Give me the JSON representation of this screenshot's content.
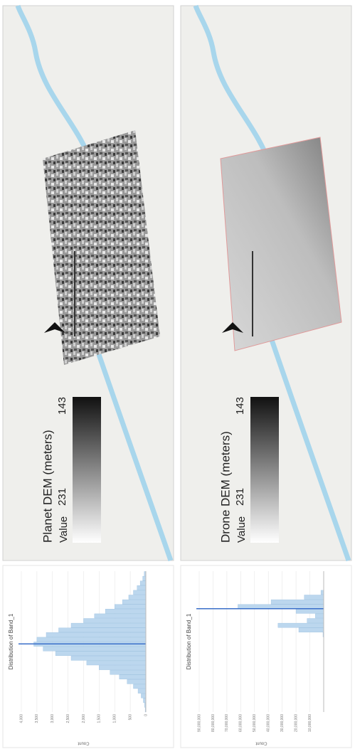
{
  "panels": [
    {
      "legend_title": "Planet DEM (meters)",
      "legend_label": "Value",
      "legend_max": "231",
      "legend_min": "143",
      "histogram": {
        "title": "Distribution of Band_1",
        "y_label": "Count",
        "ylim": [
          0,
          4000
        ],
        "yticks": [
          0,
          500,
          {
            "value": 1000,
            "label": "1,000"
          },
          {
            "value": 1500,
            "label": "1,500"
          },
          {
            "value": 2000,
            "label": "2,000"
          },
          {
            "value": 2500,
            "label": "2,500"
          },
          {
            "value": 3000,
            "label": "3,000"
          },
          {
            "value": 3500,
            "label": "3,500"
          },
          {
            "value": 4000,
            "label": "4,000"
          }
        ],
        "values": [
          20,
          40,
          80,
          150,
          250,
          400,
          600,
          850,
          1150,
          1500,
          1900,
          2400,
          2900,
          3300,
          3600,
          3500,
          3200,
          2800,
          2400,
          2000,
          1650,
          1300,
          1000,
          750,
          550,
          400,
          280,
          180,
          100,
          50
        ]
      }
    },
    {
      "legend_title": "Drone DEM (meters)",
      "legend_label": "Value",
      "legend_max": "231",
      "legend_min": "143",
      "histogram": {
        "title": "Distribution of Band_1",
        "y_label": "Count",
        "ylim": [
          0,
          90000000
        ],
        "yticks": [
          {
            "value": 10000000,
            "label": "10,000,000"
          },
          {
            "value": 20000000,
            "label": "20,000,000"
          },
          {
            "value": 30000000,
            "label": "30,000,000"
          },
          {
            "value": 40000000,
            "label": "40,000,000"
          },
          {
            "value": 50000000,
            "label": "50,000,000"
          },
          {
            "value": 60000000,
            "label": "60,000,000"
          },
          {
            "value": 70000000,
            "label": "70,000,000"
          },
          {
            "value": 80000000,
            "label": "80,000,000"
          },
          {
            "value": 90000000,
            "label": "90,000,000"
          }
        ],
        "values": [
          0,
          0,
          0,
          0,
          0,
          0,
          0,
          0,
          0,
          0,
          0,
          0,
          0,
          0,
          0,
          0,
          500000,
          18000000,
          33000000,
          12000000,
          6000000,
          20000000,
          62000000,
          38000000,
          14000000,
          2000000,
          0,
          0,
          0,
          0
        ]
      }
    }
  ]
}
